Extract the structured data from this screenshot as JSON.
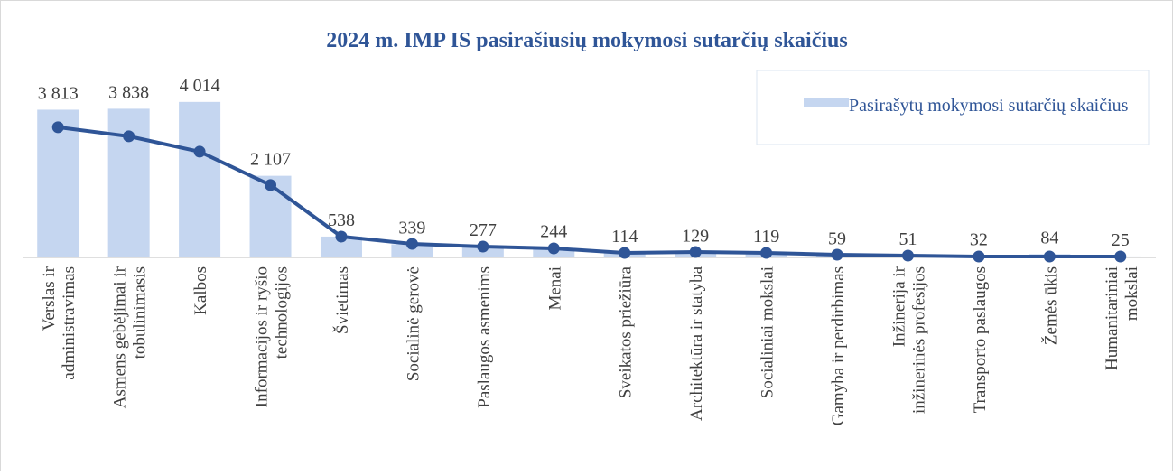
{
  "chart_data": {
    "type": "bar",
    "title": "2024 m. IMP IS pasirašiusių mokymosi sutarčių skaičius",
    "categories": [
      [
        "Verslas ir",
        "administravimas"
      ],
      [
        "Asmens gebėjimai ir",
        "tobulinimasis"
      ],
      [
        "Kalbos"
      ],
      [
        "Informacijos ir ryšio",
        "technologijos"
      ],
      [
        "Švietimas"
      ],
      [
        "Socialinė gerovė"
      ],
      [
        "Paslaugos asmenims"
      ],
      [
        "Menai"
      ],
      [
        "Sveikatos priežiūra"
      ],
      [
        "Architektūra ir statyba"
      ],
      [
        "Socialiniai mokslai"
      ],
      [
        "Gamyba ir perdirbimas"
      ],
      [
        "Inžinerija ir",
        "inžinerinės profesijos"
      ],
      [
        "Transporto paslaugos"
      ],
      [
        "Žemės ūkis"
      ],
      [
        "Humanitariniai",
        "mokslai"
      ]
    ],
    "series": [
      {
        "name": "Pasirašytų mokymosi sutarčių skaičius",
        "type": "bar",
        "color": "#c5d6f0",
        "values": [
          3813,
          3838,
          4014,
          2107,
          538,
          339,
          277,
          244,
          114,
          129,
          119,
          59,
          51,
          32,
          84,
          25
        ],
        "value_labels": [
          "3 813",
          "3 838",
          "4 014",
          "2 107",
          "538",
          "339",
          "277",
          "244",
          "114",
          "129",
          "119",
          "59",
          "51",
          "32",
          "84",
          "25"
        ]
      },
      {
        "type": "line",
        "color": "#2f5597",
        "values": [
          3360,
          3127,
          2730,
          1867,
          537,
          350,
          280,
          233,
          117,
          140,
          117,
          70,
          47,
          23,
          23,
          23
        ]
      }
    ],
    "ylim": [
      0,
      4500
    ]
  }
}
